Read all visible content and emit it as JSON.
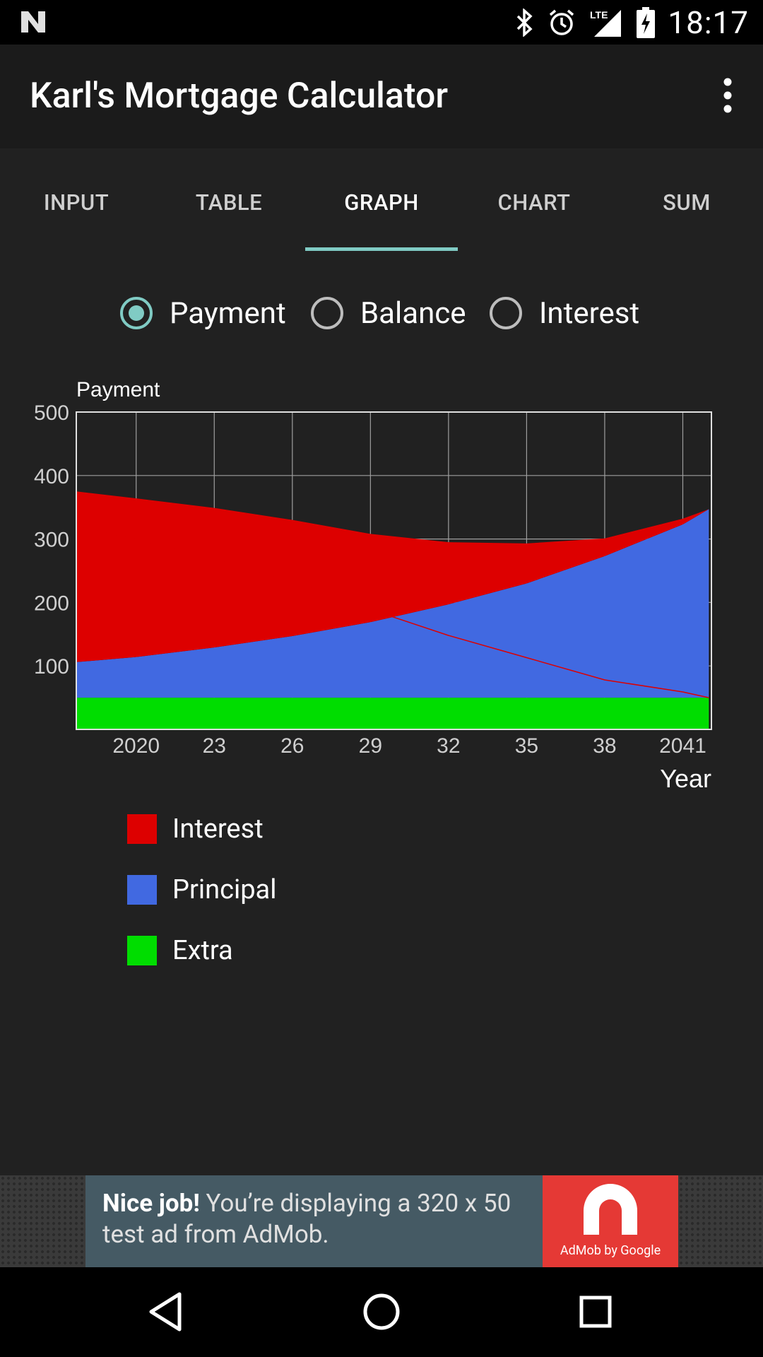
{
  "status_bar": {
    "time": "18:17",
    "network": "LTE"
  },
  "app_bar": {
    "title": "Karl's Mortgage Calculator"
  },
  "tabs": [
    {
      "label": "INPUT"
    },
    {
      "label": "TABLE"
    },
    {
      "label": "GRAPH",
      "active": true
    },
    {
      "label": "CHART"
    },
    {
      "label": "SUM"
    }
  ],
  "radio": {
    "options": [
      "Payment",
      "Balance",
      "Interest"
    ],
    "selected": "Payment"
  },
  "chart_data": {
    "type": "area",
    "ylabel": "Payment",
    "xlabel": "Year",
    "y_ticks": [
      "500",
      "400",
      "300",
      "200",
      "100"
    ],
    "x_ticks": [
      "2020",
      "23",
      "26",
      "29",
      "32",
      "35",
      "38",
      "2041"
    ],
    "ylim": [
      0,
      500
    ],
    "xlim": [
      2017.7,
      2042.1
    ],
    "grid": true,
    "x": [
      2017.7,
      2020,
      2023,
      2026,
      2029,
      2032,
      2035,
      2038,
      2041,
      2042
    ],
    "series": [
      {
        "name": "Extra",
        "color": "#00dd00",
        "values": [
          50,
          50,
          50,
          50,
          50,
          50,
          50,
          50,
          50,
          50
        ]
      },
      {
        "name": "Principal",
        "color": "#4169e1",
        "values": [
          56,
          64,
          79,
          97,
          119,
          147,
          180,
          223,
          273,
          297
        ]
      },
      {
        "name": "Interest",
        "color": "#dd0000",
        "values": [
          269,
          250,
          220,
          183,
          139,
          98,
          63,
          28,
          9,
          0
        ]
      }
    ]
  },
  "legend": [
    {
      "label": "Interest",
      "color": "#dd0000"
    },
    {
      "label": "Principal",
      "color": "#4169e1"
    },
    {
      "label": "Extra",
      "color": "#00dd00"
    }
  ],
  "ad": {
    "headline": "Nice job!",
    "text": " You’re displaying a 320 x 50 test ad from AdMob.",
    "logo_caption": "AdMob by Google"
  }
}
